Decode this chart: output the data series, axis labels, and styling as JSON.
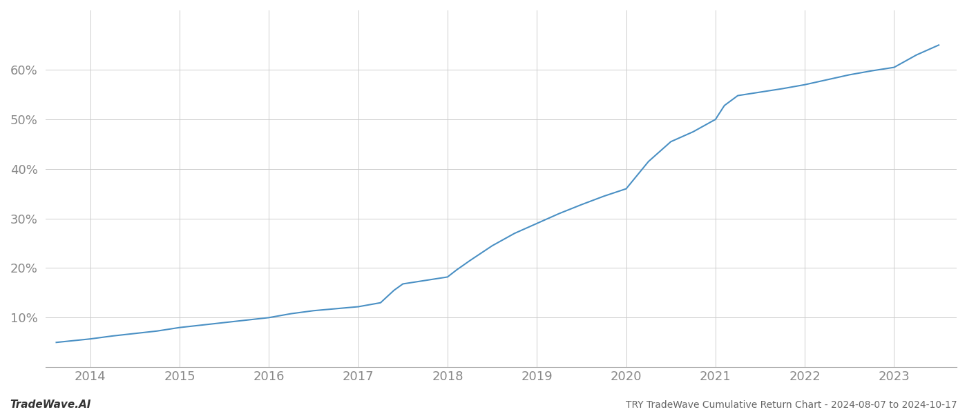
{
  "title": "TRY TradeWave Cumulative Return Chart - 2024-08-07 to 2024-10-17",
  "watermark": "TradeWave.AI",
  "line_color": "#4a90c4",
  "background_color": "#ffffff",
  "grid_color": "#cccccc",
  "x_years": [
    2014,
    2015,
    2016,
    2017,
    2018,
    2019,
    2020,
    2021,
    2022,
    2023
  ],
  "x_data": [
    2013.62,
    2014.0,
    2014.25,
    2014.5,
    2014.75,
    2015.0,
    2015.25,
    2015.5,
    2015.75,
    2016.0,
    2016.25,
    2016.5,
    2016.75,
    2017.0,
    2017.25,
    2017.4,
    2017.5,
    2017.75,
    2018.0,
    2018.1,
    2018.25,
    2018.5,
    2018.75,
    2019.0,
    2019.25,
    2019.5,
    2019.75,
    2020.0,
    2020.25,
    2020.5,
    2020.75,
    2021.0,
    2021.1,
    2021.25,
    2021.5,
    2021.75,
    2022.0,
    2022.25,
    2022.5,
    2022.75,
    2023.0,
    2023.25,
    2023.5
  ],
  "y_data": [
    0.05,
    0.057,
    0.063,
    0.068,
    0.073,
    0.08,
    0.085,
    0.09,
    0.095,
    0.1,
    0.108,
    0.114,
    0.118,
    0.122,
    0.13,
    0.155,
    0.168,
    0.175,
    0.182,
    0.196,
    0.215,
    0.245,
    0.27,
    0.29,
    0.31,
    0.328,
    0.345,
    0.36,
    0.415,
    0.455,
    0.475,
    0.5,
    0.528,
    0.548,
    0.555,
    0.562,
    0.57,
    0.58,
    0.59,
    0.598,
    0.605,
    0.63,
    0.65
  ],
  "ylim": [
    0.0,
    0.72
  ],
  "xlim": [
    2013.5,
    2023.7
  ],
  "yticks": [
    0.1,
    0.2,
    0.3,
    0.4,
    0.5,
    0.6
  ],
  "ytick_labels": [
    "10%",
    "20%",
    "30%",
    "40%",
    "50%",
    "60%"
  ],
  "line_width": 1.5,
  "title_fontsize": 10,
  "watermark_fontsize": 11,
  "tick_fontsize": 13,
  "axis_color": "#888888",
  "bottom_text_color": "#666666",
  "watermark_color": "#333333"
}
